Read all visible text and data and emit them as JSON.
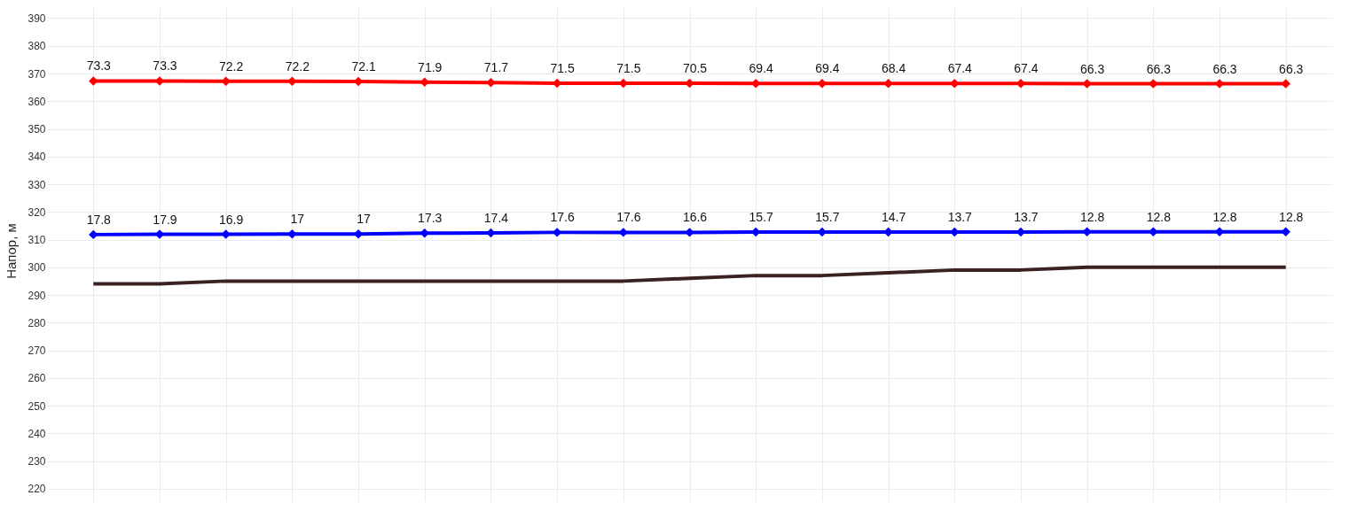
{
  "chart_data": {
    "type": "line",
    "ylabel": "Напор, м",
    "categories": [
      null,
      null,
      null,
      null,
      null,
      null,
      null,
      null,
      null,
      null,
      null,
      null,
      null,
      null,
      null,
      null,
      null,
      null,
      null
    ],
    "series": [
      {
        "color": "#ff0000",
        "marker": "diamond",
        "values": [
          367.3,
          367.3,
          367.2,
          367.2,
          367.1,
          366.9,
          366.7,
          366.5,
          366.5,
          366.5,
          366.4,
          366.4,
          366.4,
          366.4,
          366.4,
          366.3,
          366.3,
          366.3,
          366.3
        ]
      },
      {
        "color": "#0000ff",
        "marker": "diamond",
        "values": [
          311.8,
          311.9,
          311.9,
          312,
          312,
          312.3,
          312.4,
          312.6,
          312.6,
          312.6,
          312.7,
          312.7,
          312.7,
          312.7,
          312.7,
          312.8,
          312.8,
          312.8,
          312.8
        ]
      },
      {
        "color": "#3b2222",
        "marker": "none",
        "values": [
          294,
          294,
          295,
          295,
          295,
          295,
          295,
          295,
          295,
          296,
          297,
          297,
          298,
          299,
          299,
          300,
          300,
          300,
          300
        ]
      }
    ],
    "annotations": [
      {
        "text": "73.3",
        "y": 367.3
      },
      {
        "text": "73.3",
        "y": 367.3
      },
      {
        "text": "72.2",
        "y": 367.2
      },
      {
        "text": "72.2",
        "y": 367.2
      },
      {
        "text": "72.1",
        "y": 367.1
      },
      {
        "text": "71.9",
        "y": 366.9
      },
      {
        "text": "71.7",
        "y": 366.7
      },
      {
        "text": "71.5",
        "y": 366.5
      },
      {
        "text": "71.5",
        "y": 366.5
      },
      {
        "text": "70.5",
        "y": 366.5
      },
      {
        "text": "69.4",
        "y": 366.4
      },
      {
        "text": "69.4",
        "y": 366.4
      },
      {
        "text": "68.4",
        "y": 366.4
      },
      {
        "text": "67.4",
        "y": 366.4
      },
      {
        "text": "67.4",
        "y": 366.4
      },
      {
        "text": "66.3",
        "y": 366.3
      },
      {
        "text": "66.3",
        "y": 366.3
      },
      {
        "text": "66.3",
        "y": 366.3
      },
      {
        "text": "66.3",
        "y": 366.3
      },
      {
        "text": "17.8",
        "y": 311.8
      },
      {
        "text": "17.9",
        "y": 311.9
      },
      {
        "text": "16.9",
        "y": 311.9
      },
      {
        "text": "17",
        "y": 312
      },
      {
        "text": "17",
        "y": 312
      },
      {
        "text": "17.3",
        "y": 312.3
      },
      {
        "text": "17.4",
        "y": 312.4
      },
      {
        "text": "17.6",
        "y": 312.6
      },
      {
        "text": "17.6",
        "y": 312.6
      },
      {
        "text": "16.6",
        "y": 312.6
      },
      {
        "text": "15.7",
        "y": 312.7
      },
      {
        "text": "15.7",
        "y": 312.7
      },
      {
        "text": "14.7",
        "y": 312.7
      },
      {
        "text": "13.7",
        "y": 312.7
      },
      {
        "text": "13.7",
        "y": 312.7
      },
      {
        "text": "12.8",
        "y": 312.8
      },
      {
        "text": "12.8",
        "y": 312.8
      },
      {
        "text": "12.8",
        "y": 312.8
      },
      {
        "text": "12.8",
        "y": 312.8
      }
    ],
    "ylim": [
      218,
      394
    ],
    "yticks": [
      220,
      230,
      240,
      250,
      260,
      270,
      280,
      290,
      300,
      310,
      320,
      330,
      340,
      350,
      360,
      370,
      380,
      390
    ],
    "grid": true
  }
}
